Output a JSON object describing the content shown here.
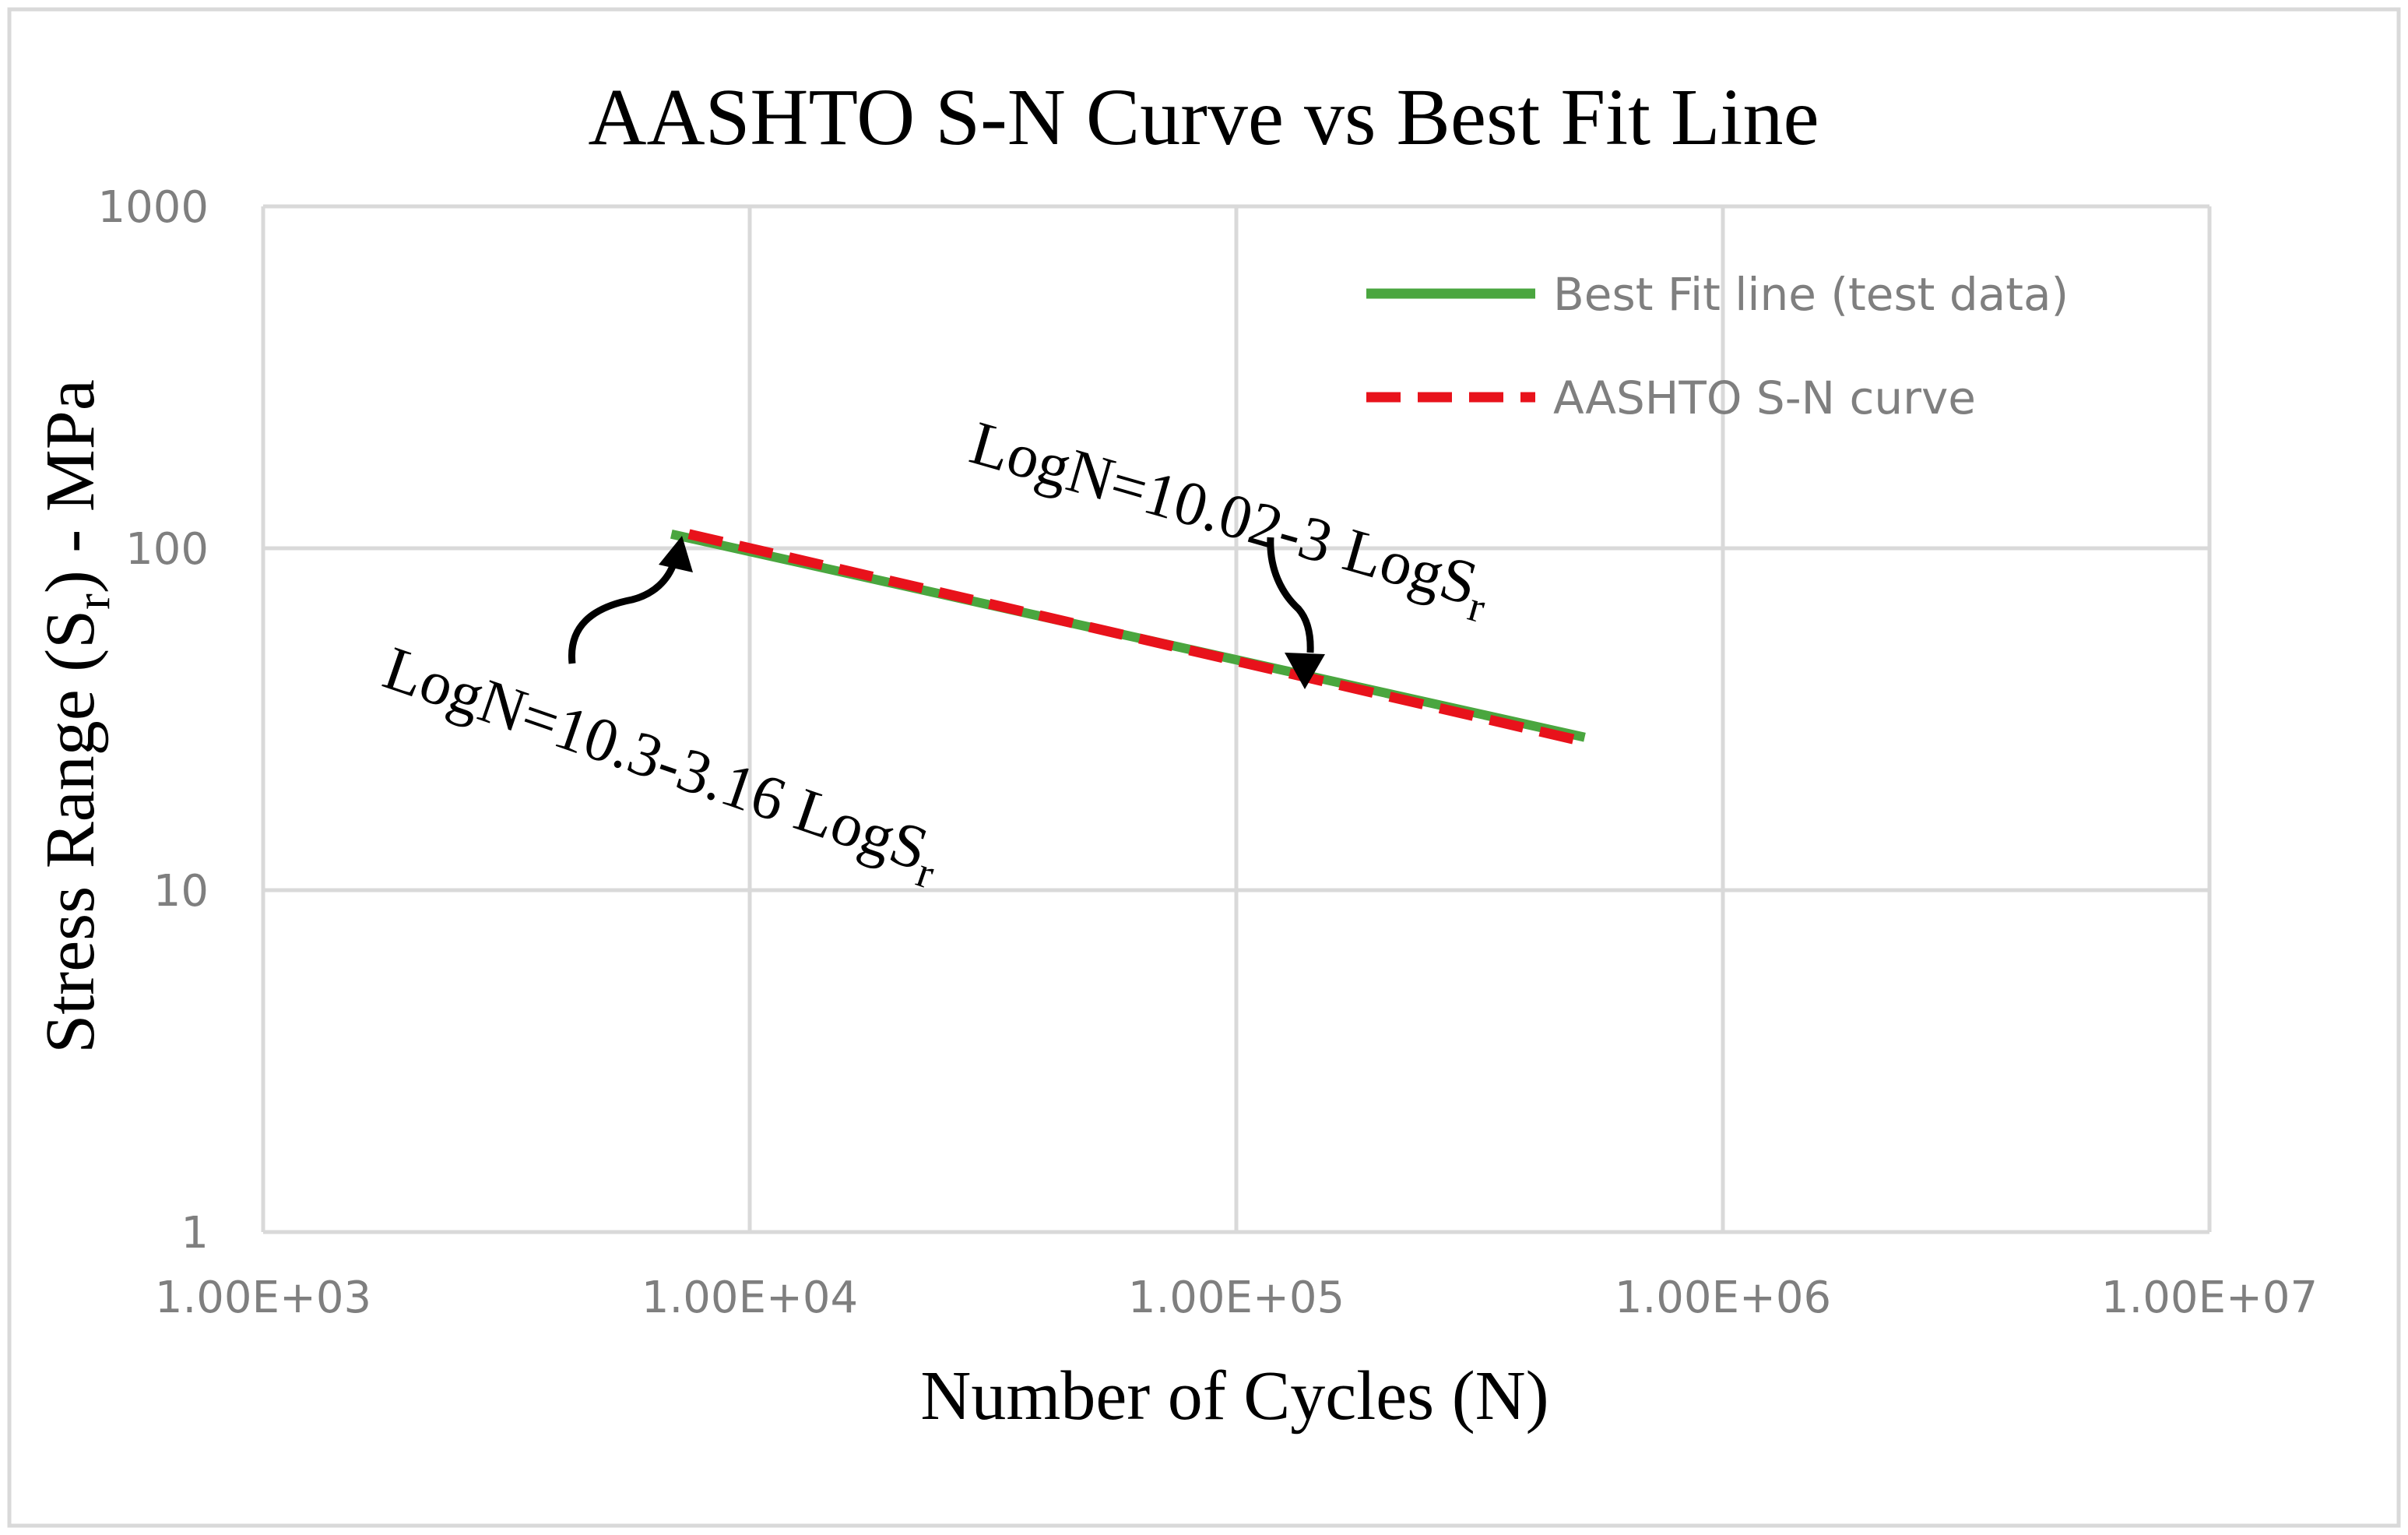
{
  "chart_data": {
    "type": "line",
    "title": "AASHTO S-N Curve vs Best Fit Line",
    "xlabel": "Number of Cycles (N)",
    "ylabel": {
      "prefix": "Stress Range (S",
      "sub": "r",
      "suffix": ") - MPa"
    },
    "xscale": "log",
    "yscale": "log",
    "xlim": [
      1000,
      10000000
    ],
    "ylim": [
      1,
      1000
    ],
    "x_ticks": [
      1000,
      10000,
      100000,
      1000000,
      10000000
    ],
    "x_tick_labels": [
      "1.00E+03",
      "1.00E+04",
      "1.00E+05",
      "1.00E+06",
      "1.00E+07"
    ],
    "y_ticks": [
      1,
      10,
      100,
      1000
    ],
    "y_tick_labels": [
      "1",
      "10",
      "100",
      "1000"
    ],
    "grid": true,
    "legend_position": "top-right",
    "series": [
      {
        "name": "Best Fit line (test data)",
        "color": "#4aa63f",
        "style": "solid",
        "x": [
          6900,
          520000
        ],
        "y": [
          110,
          28
        ]
      },
      {
        "name": "AASHTO S-N curve",
        "color": "#e8121b",
        "style": "dashed",
        "x": [
          7500,
          500000
        ],
        "y": [
          110,
          27.5
        ]
      }
    ],
    "annotations": [
      {
        "id": "best-fit-equation",
        "text": "LogN=10.3-3.16 LogS",
        "sub": "r",
        "points_to": {
          "x": 7000,
          "y": 110
        }
      },
      {
        "id": "aashto-equation",
        "text": "LogN=10.02-3 LogS",
        "sub": "r",
        "points_to": {
          "x": 140000,
          "y": 40
        }
      }
    ]
  }
}
